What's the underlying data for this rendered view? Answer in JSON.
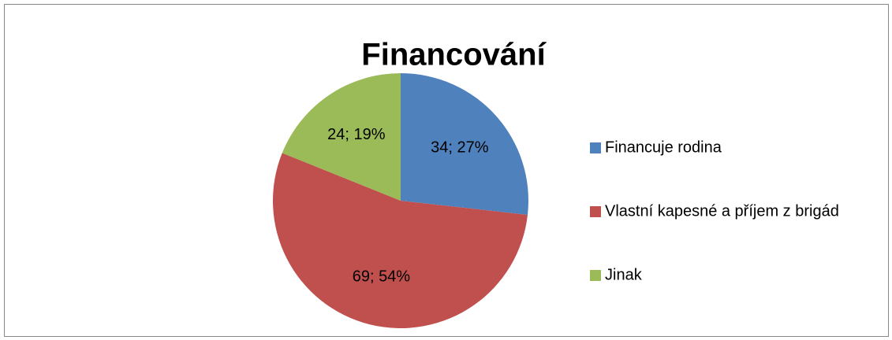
{
  "chart_data": {
    "type": "pie",
    "title": "Financování",
    "categories": [
      "Financuje rodina",
      "Vlastní kapesné a příjem z brigád",
      "Jinak"
    ],
    "values": [
      34,
      69,
      24
    ],
    "value_labels": [
      "34; 27%",
      "69; 54%",
      "24; 19%"
    ],
    "colors": [
      "#4f81bd",
      "#c0504d",
      "#9bbb59"
    ],
    "legend": "right"
  }
}
